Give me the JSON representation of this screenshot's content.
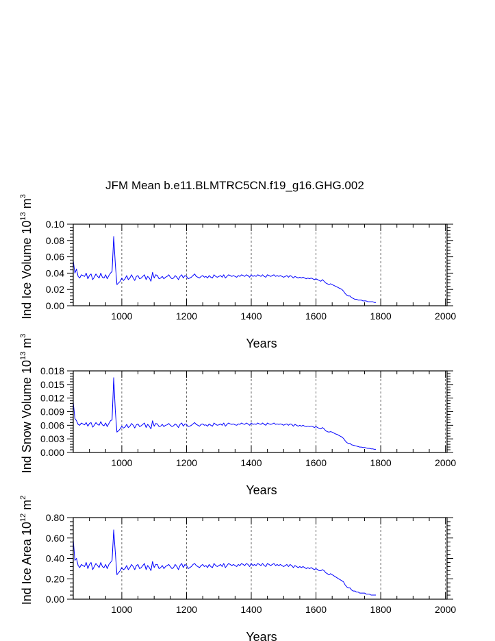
{
  "figure_title": "JFM Mean b.e11.BLMTRC5CN.f19_g16.GHG.002",
  "line_color": "#0000ff",
  "chart_data": [
    {
      "type": "line",
      "name": "ice-volume",
      "ylabel_main": "Ind Ice Volume 10",
      "ylabel_exp": "13",
      "ylabel_unit": " m",
      "ylabel_unit_exp": "3",
      "xlabel": "Years",
      "xlim": [
        850,
        2005
      ],
      "ylim": [
        0,
        0.1
      ],
      "x_ticks": [
        1000,
        1200,
        1400,
        1600,
        1800,
        2000
      ],
      "x_tick_labels": [
        "1000",
        "1200",
        "1400",
        "1600",
        "1800",
        "2000"
      ],
      "y_ticks": [
        0,
        0.02,
        0.04,
        0.06,
        0.08,
        0.1
      ],
      "y_tick_labels": [
        "0.00",
        "0.02",
        "0.04",
        "0.06",
        "0.08",
        "0.10"
      ],
      "grid_x": true,
      "series": [
        {
          "name": "Ind Ice Volume",
          "x_start": 850,
          "x_step": 5,
          "values": [
            0.055,
            0.04,
            0.045,
            0.036,
            0.034,
            0.038,
            0.037,
            0.036,
            0.04,
            0.033,
            0.037,
            0.039,
            0.032,
            0.035,
            0.039,
            0.036,
            0.034,
            0.04,
            0.035,
            0.034,
            0.038,
            0.033,
            0.037,
            0.04,
            0.042,
            0.085,
            0.05,
            0.026,
            0.028,
            0.03,
            0.034,
            0.031,
            0.033,
            0.037,
            0.032,
            0.034,
            0.038,
            0.034,
            0.031,
            0.036,
            0.037,
            0.033,
            0.034,
            0.036,
            0.038,
            0.032,
            0.036,
            0.034,
            0.03,
            0.041,
            0.034,
            0.038,
            0.037,
            0.033,
            0.034,
            0.036,
            0.033,
            0.035,
            0.036,
            0.038,
            0.035,
            0.033,
            0.034,
            0.037,
            0.035,
            0.032,
            0.036,
            0.038,
            0.034,
            0.037,
            0.036,
            0.033,
            0.034,
            0.035,
            0.037,
            0.039,
            0.036,
            0.035,
            0.034,
            0.036,
            0.037,
            0.035,
            0.036,
            0.034,
            0.037,
            0.035,
            0.034,
            0.038,
            0.036,
            0.035,
            0.036,
            0.037,
            0.035,
            0.038,
            0.034,
            0.036,
            0.038,
            0.037,
            0.036,
            0.037,
            0.036,
            0.035,
            0.037,
            0.036,
            0.038,
            0.037,
            0.036,
            0.038,
            0.037,
            0.035,
            0.038,
            0.036,
            0.037,
            0.036,
            0.038,
            0.037,
            0.036,
            0.038,
            0.036,
            0.035,
            0.038,
            0.037,
            0.036,
            0.037,
            0.038,
            0.036,
            0.037,
            0.036,
            0.037,
            0.036,
            0.035,
            0.036,
            0.037,
            0.035,
            0.037,
            0.036,
            0.034,
            0.036,
            0.035,
            0.034,
            0.035,
            0.034,
            0.035,
            0.034,
            0.033,
            0.034,
            0.033,
            0.034,
            0.033,
            0.032,
            0.033,
            0.032,
            0.031,
            0.03,
            0.032,
            0.03,
            0.028,
            0.027,
            0.026,
            0.027,
            0.026,
            0.025,
            0.024,
            0.023,
            0.022,
            0.021,
            0.02,
            0.018,
            0.015,
            0.013,
            0.012,
            0.012,
            0.01,
            0.009,
            0.008,
            0.008,
            0.007,
            0.007,
            0.007,
            0.006,
            0.006,
            0.006,
            0.005,
            0.005,
            0.005,
            0.005,
            0.004,
            0.004
          ]
        }
      ]
    },
    {
      "type": "line",
      "name": "snow-volume",
      "ylabel_main": "Ind Snow Volume 10",
      "ylabel_exp": "13",
      "ylabel_unit": " m",
      "ylabel_unit_exp": "3",
      "xlabel": "Years",
      "xlim": [
        850,
        2005
      ],
      "ylim": [
        0,
        0.018
      ],
      "x_ticks": [
        1000,
        1200,
        1400,
        1600,
        1800,
        2000
      ],
      "x_tick_labels": [
        "1000",
        "1200",
        "1400",
        "1600",
        "1800",
        "2000"
      ],
      "y_ticks": [
        0,
        0.003,
        0.006,
        0.009,
        0.012,
        0.015,
        0.018
      ],
      "y_tick_labels": [
        "0.000",
        "0.003",
        "0.006",
        "0.009",
        "0.012",
        "0.015",
        "0.018"
      ],
      "grid_x": true,
      "series": [
        {
          "name": "Ind Snow Volume",
          "x_start": 850,
          "x_step": 5,
          "values": [
            0.011,
            0.0075,
            0.007,
            0.0062,
            0.006,
            0.0065,
            0.0063,
            0.0061,
            0.0066,
            0.0058,
            0.0064,
            0.0066,
            0.0056,
            0.006,
            0.0066,
            0.0062,
            0.006,
            0.0068,
            0.0061,
            0.0059,
            0.0065,
            0.0057,
            0.0064,
            0.007,
            0.0072,
            0.0165,
            0.009,
            0.0045,
            0.0048,
            0.0052,
            0.0058,
            0.0054,
            0.0056,
            0.0062,
            0.0055,
            0.0058,
            0.0064,
            0.006,
            0.0054,
            0.0061,
            0.0063,
            0.0057,
            0.0059,
            0.0062,
            0.0065,
            0.0055,
            0.0062,
            0.0058,
            0.0052,
            0.007,
            0.0058,
            0.0064,
            0.0063,
            0.0057,
            0.0058,
            0.0062,
            0.0057,
            0.006,
            0.0061,
            0.0064,
            0.006,
            0.0057,
            0.0059,
            0.0063,
            0.006,
            0.0055,
            0.0062,
            0.0065,
            0.0058,
            0.0063,
            0.0062,
            0.0057,
            0.0058,
            0.006,
            0.0063,
            0.0066,
            0.0062,
            0.006,
            0.0058,
            0.0062,
            0.0063,
            0.006,
            0.0061,
            0.0058,
            0.0063,
            0.006,
            0.0058,
            0.0065,
            0.0062,
            0.006,
            0.0061,
            0.0063,
            0.006,
            0.0065,
            0.0058,
            0.0062,
            0.0065,
            0.0063,
            0.0062,
            0.0063,
            0.0061,
            0.006,
            0.0063,
            0.0062,
            0.0065,
            0.0063,
            0.0062,
            0.0065,
            0.0063,
            0.006,
            0.0065,
            0.0062,
            0.0063,
            0.0062,
            0.0065,
            0.0063,
            0.0062,
            0.0065,
            0.0062,
            0.006,
            0.0065,
            0.0063,
            0.0062,
            0.0063,
            0.0065,
            0.0062,
            0.0063,
            0.0062,
            0.0063,
            0.0062,
            0.006,
            0.0062,
            0.0063,
            0.006,
            0.0063,
            0.0062,
            0.0058,
            0.0062,
            0.006,
            0.0058,
            0.006,
            0.0058,
            0.006,
            0.0058,
            0.0057,
            0.0058,
            0.0057,
            0.0058,
            0.0057,
            0.0055,
            0.0057,
            0.0055,
            0.0053,
            0.0052,
            0.0055,
            0.0052,
            0.0048,
            0.0046,
            0.0045,
            0.0046,
            0.0045,
            0.0043,
            0.0041,
            0.004,
            0.0038,
            0.0036,
            0.0034,
            0.0031,
            0.0026,
            0.0022,
            0.002,
            0.002,
            0.0017,
            0.0016,
            0.0015,
            0.0014,
            0.0013,
            0.0012,
            0.0012,
            0.0011,
            0.0011,
            0.001,
            0.0009,
            0.0009,
            0.0008,
            0.0008,
            0.0007,
            0.0007
          ]
        }
      ]
    },
    {
      "type": "line",
      "name": "ice-area",
      "ylabel_main": "Ind Ice Area 10",
      "ylabel_exp": "12",
      "ylabel_unit": " m",
      "ylabel_unit_exp": "2",
      "xlabel": "Years",
      "xlim": [
        850,
        2005
      ],
      "ylim": [
        0,
        0.8
      ],
      "x_ticks": [
        1000,
        1200,
        1400,
        1600,
        1800,
        2000
      ],
      "x_tick_labels": [
        "1000",
        "1200",
        "1400",
        "1600",
        "1800",
        "2000"
      ],
      "y_ticks": [
        0,
        0.2,
        0.4,
        0.6,
        0.8
      ],
      "y_tick_labels": [
        "0.00",
        "0.20",
        "0.40",
        "0.60",
        "0.80"
      ],
      "grid_x": true,
      "series": [
        {
          "name": "Ind Ice Area",
          "x_start": 850,
          "x_step": 5,
          "values": [
            0.58,
            0.38,
            0.4,
            0.33,
            0.31,
            0.34,
            0.33,
            0.32,
            0.36,
            0.3,
            0.34,
            0.36,
            0.29,
            0.32,
            0.35,
            0.33,
            0.31,
            0.36,
            0.32,
            0.31,
            0.34,
            0.3,
            0.34,
            0.36,
            0.38,
            0.68,
            0.45,
            0.24,
            0.26,
            0.28,
            0.31,
            0.29,
            0.3,
            0.33,
            0.29,
            0.31,
            0.34,
            0.32,
            0.29,
            0.33,
            0.34,
            0.3,
            0.31,
            0.33,
            0.35,
            0.29,
            0.33,
            0.31,
            0.28,
            0.37,
            0.31,
            0.34,
            0.34,
            0.3,
            0.31,
            0.33,
            0.3,
            0.32,
            0.33,
            0.34,
            0.32,
            0.3,
            0.31,
            0.34,
            0.32,
            0.29,
            0.33,
            0.35,
            0.31,
            0.34,
            0.33,
            0.3,
            0.31,
            0.32,
            0.34,
            0.35,
            0.33,
            0.32,
            0.31,
            0.33,
            0.34,
            0.32,
            0.33,
            0.31,
            0.34,
            0.32,
            0.31,
            0.35,
            0.33,
            0.32,
            0.33,
            0.34,
            0.32,
            0.35,
            0.31,
            0.33,
            0.35,
            0.34,
            0.33,
            0.34,
            0.33,
            0.32,
            0.34,
            0.33,
            0.35,
            0.34,
            0.33,
            0.35,
            0.34,
            0.32,
            0.35,
            0.33,
            0.34,
            0.33,
            0.35,
            0.34,
            0.33,
            0.35,
            0.33,
            0.32,
            0.35,
            0.34,
            0.33,
            0.34,
            0.35,
            0.33,
            0.34,
            0.33,
            0.34,
            0.33,
            0.32,
            0.33,
            0.34,
            0.32,
            0.34,
            0.33,
            0.31,
            0.33,
            0.32,
            0.31,
            0.32,
            0.31,
            0.32,
            0.31,
            0.3,
            0.31,
            0.3,
            0.31,
            0.3,
            0.29,
            0.3,
            0.29,
            0.28,
            0.28,
            0.29,
            0.28,
            0.26,
            0.25,
            0.24,
            0.25,
            0.24,
            0.23,
            0.22,
            0.21,
            0.2,
            0.19,
            0.18,
            0.17,
            0.14,
            0.12,
            0.11,
            0.11,
            0.09,
            0.08,
            0.08,
            0.07,
            0.07,
            0.06,
            0.06,
            0.06,
            0.06,
            0.05,
            0.05,
            0.05,
            0.04,
            0.04,
            0.04,
            0.04
          ]
        }
      ]
    }
  ]
}
